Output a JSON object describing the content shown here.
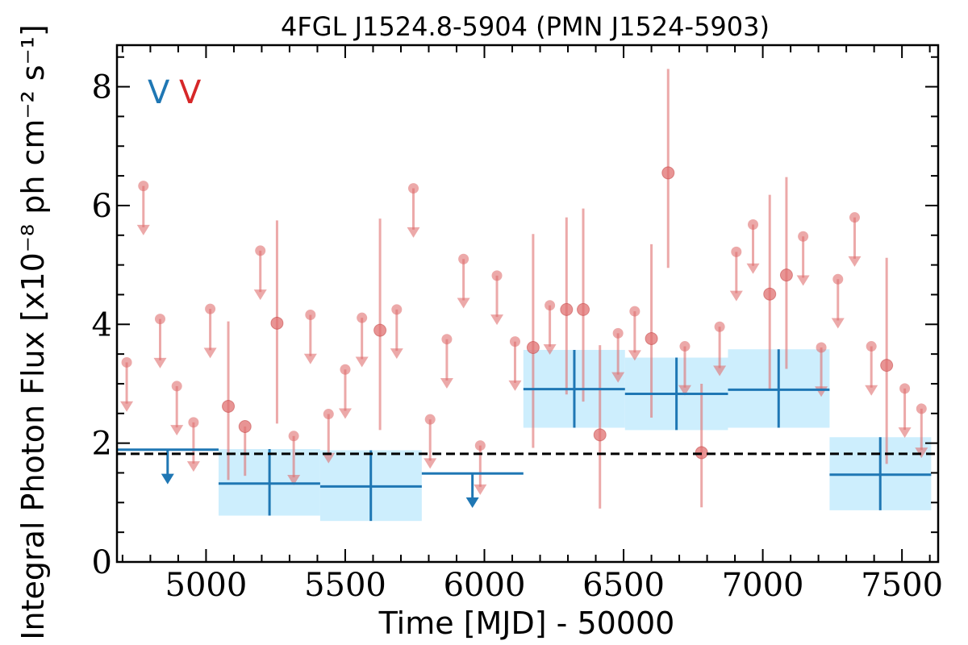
{
  "chart_data": {
    "type": "scatter",
    "title": "4FGL J1524.8-5904 (PMN J1524-5903)",
    "xlabel": "Time [MJD] - 50000",
    "ylabel": "Integral Photon Flux [x10⁻⁸ ph cm⁻² s⁻¹]",
    "xlim": [
      4680,
      7630
    ],
    "ylim": [
      0,
      8.7
    ],
    "xticks": [
      5000,
      5500,
      6000,
      6500,
      7000,
      7500
    ],
    "yticks": [
      0,
      2,
      4,
      6,
      8
    ],
    "legend_markers": [
      {
        "label": "V",
        "color": "#1f77b4"
      },
      {
        "label": "V",
        "color": "#d62728"
      }
    ],
    "average_flux": 1.82,
    "colors": {
      "short_bins": "#e07070",
      "long_bins": "#1f77b4",
      "long_bins_band": "#cdeefd",
      "average_line": "#000000"
    },
    "short_bins": {
      "name": "",
      "detections": [
        {
          "x": 5080,
          "y": 2.62,
          "ylo": 1.38,
          "yhi": 4.05
        },
        {
          "x": 5140,
          "y": 2.28,
          "ylo": 1.45,
          "yhi": 2.28
        },
        {
          "x": 5255,
          "y": 4.02,
          "ylo": 2.33,
          "yhi": 5.75
        },
        {
          "x": 5625,
          "y": 3.9,
          "ylo": 2.22,
          "yhi": 5.78
        },
        {
          "x": 6175,
          "y": 3.61,
          "ylo": 1.92,
          "yhi": 5.52
        },
        {
          "x": 6295,
          "y": 4.25,
          "ylo": 2.82,
          "yhi": 5.8
        },
        {
          "x": 6355,
          "y": 4.25,
          "ylo": 2.7,
          "yhi": 5.95
        },
        {
          "x": 6415,
          "y": 2.14,
          "ylo": 0.9,
          "yhi": 3.65
        },
        {
          "x": 6600,
          "y": 3.76,
          "ylo": 2.43,
          "yhi": 5.35
        },
        {
          "x": 6660,
          "y": 6.55,
          "ylo": 4.95,
          "yhi": 8.3
        },
        {
          "x": 6780,
          "y": 1.84,
          "ylo": 0.92,
          "yhi": 3.0
        },
        {
          "x": 7025,
          "y": 4.51,
          "ylo": 2.9,
          "yhi": 6.18
        },
        {
          "x": 7085,
          "y": 4.83,
          "ylo": 3.25,
          "yhi": 6.48
        },
        {
          "x": 7445,
          "y": 3.31,
          "ylo": 1.65,
          "yhi": 5.12
        }
      ],
      "upper_limits": [
        {
          "x": 4715,
          "y": 3.36
        },
        {
          "x": 4775,
          "y": 6.33
        },
        {
          "x": 4835,
          "y": 4.09
        },
        {
          "x": 4895,
          "y": 2.96
        },
        {
          "x": 4955,
          "y": 2.35
        },
        {
          "x": 5015,
          "y": 4.26
        },
        {
          "x": 5195,
          "y": 5.24
        },
        {
          "x": 5315,
          "y": 2.12
        },
        {
          "x": 5375,
          "y": 4.16
        },
        {
          "x": 5440,
          "y": 2.49
        },
        {
          "x": 5500,
          "y": 3.24
        },
        {
          "x": 5560,
          "y": 4.11
        },
        {
          "x": 5685,
          "y": 4.25
        },
        {
          "x": 5745,
          "y": 6.29
        },
        {
          "x": 5805,
          "y": 2.4
        },
        {
          "x": 5865,
          "y": 3.75
        },
        {
          "x": 5925,
          "y": 5.1
        },
        {
          "x": 5985,
          "y": 1.96
        },
        {
          "x": 6045,
          "y": 4.82
        },
        {
          "x": 6110,
          "y": 3.71
        },
        {
          "x": 6235,
          "y": 4.32
        },
        {
          "x": 6480,
          "y": 3.85
        },
        {
          "x": 6540,
          "y": 4.22
        },
        {
          "x": 6720,
          "y": 3.63
        },
        {
          "x": 6845,
          "y": 3.96
        },
        {
          "x": 6905,
          "y": 5.22
        },
        {
          "x": 6965,
          "y": 5.68
        },
        {
          "x": 7145,
          "y": 5.48
        },
        {
          "x": 7210,
          "y": 3.61
        },
        {
          "x": 7270,
          "y": 4.76
        },
        {
          "x": 7330,
          "y": 5.8
        },
        {
          "x": 7390,
          "y": 3.63
        },
        {
          "x": 7510,
          "y": 2.92
        },
        {
          "x": 7570,
          "y": 2.58
        }
      ]
    },
    "long_bins": {
      "name": "",
      "detections": [
        {
          "x0": 5045,
          "x1": 5410,
          "x": 5228,
          "y": 1.32,
          "ylo": 0.78,
          "yhi": 1.9
        },
        {
          "x0": 5410,
          "x1": 5775,
          "x": 5592,
          "y": 1.27,
          "ylo": 0.69,
          "yhi": 1.88
        },
        {
          "x0": 6140,
          "x1": 6505,
          "x": 6323,
          "y": 2.91,
          "ylo": 2.26,
          "yhi": 3.57
        },
        {
          "x0": 6505,
          "x1": 6875,
          "x": 6690,
          "y": 2.83,
          "ylo": 2.22,
          "yhi": 3.44
        },
        {
          "x0": 6875,
          "x1": 7240,
          "x": 7057,
          "y": 2.9,
          "ylo": 2.26,
          "yhi": 3.58
        },
        {
          "x0": 7240,
          "x1": 7605,
          "x": 7422,
          "y": 1.47,
          "ylo": 0.87,
          "yhi": 2.1
        }
      ],
      "upper_limits": [
        {
          "x0": 4680,
          "x1": 5045,
          "x": 4862,
          "y": 1.89
        },
        {
          "x0": 5775,
          "x1": 6140,
          "x": 5957,
          "y": 1.49
        }
      ]
    }
  }
}
